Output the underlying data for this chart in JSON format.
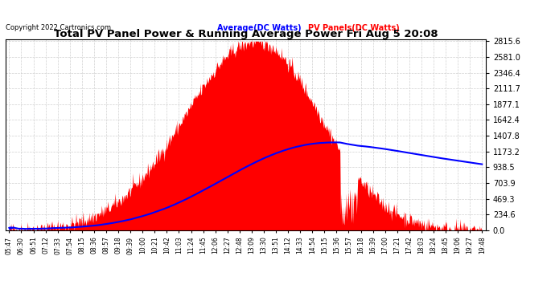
{
  "title": "Total PV Panel Power & Running Average Power Fri Aug 5 20:08",
  "copyright": "Copyright 2022 Cartronics.com",
  "legend_avg": "Average(DC Watts)",
  "legend_pv": "PV Panels(DC Watts)",
  "y_max": 2815.6,
  "y_min": 0.0,
  "y_ticks": [
    0.0,
    234.6,
    469.3,
    703.9,
    938.5,
    1173.2,
    1407.8,
    1642.4,
    1877.1,
    2111.7,
    2346.4,
    2581.0,
    2815.6
  ],
  "pv_fill_color": "#ff0000",
  "avg_line_color": "#0000ff",
  "grid_color": "#aaaaaa",
  "time_labels": [
    "05:47",
    "06:30",
    "06:51",
    "07:12",
    "07:33",
    "07:54",
    "08:15",
    "08:36",
    "08:57",
    "09:18",
    "09:39",
    "10:00",
    "10:21",
    "10:42",
    "11:03",
    "11:24",
    "11:45",
    "12:06",
    "12:27",
    "12:48",
    "13:09",
    "13:30",
    "13:51",
    "14:12",
    "14:33",
    "14:54",
    "15:15",
    "15:36",
    "15:57",
    "16:18",
    "16:39",
    "17:00",
    "17:21",
    "17:42",
    "18:03",
    "18:24",
    "18:45",
    "19:06",
    "19:27",
    "19:48"
  ]
}
